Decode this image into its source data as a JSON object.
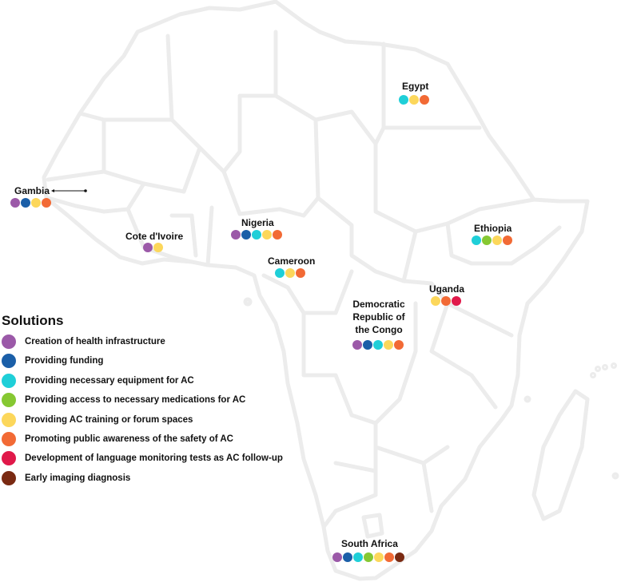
{
  "legend": {
    "title": "Solutions",
    "items": [
      {
        "label": "Creation of health infrastructure",
        "color": "#9B59A8"
      },
      {
        "label": "Providing funding",
        "color": "#1B5FA8"
      },
      {
        "label": "Providing necessary equipment for AC",
        "color": "#1FCFD8"
      },
      {
        "label": "Providing access to necessary medications for AC",
        "color": "#86C832"
      },
      {
        "label": "Providing AC training or forum spaces",
        "color": "#FCD75B"
      },
      {
        "label": "Promoting public awareness of the safety of AC",
        "color": "#F26A35"
      },
      {
        "label": "Development of language monitoring tests as AC follow-up",
        "color": "#E0194A"
      },
      {
        "label": "Early imaging diagnosis",
        "color": "#7A2A12"
      }
    ]
  },
  "countries": [
    {
      "name": "Egypt",
      "solutions": [
        2,
        4,
        5
      ]
    },
    {
      "name": "Gambia",
      "solutions": [
        0,
        1,
        4,
        5
      ]
    },
    {
      "name": "Nigeria",
      "solutions": [
        0,
        1,
        2,
        4,
        5
      ]
    },
    {
      "name": "Cote d'Ivoire",
      "solutions": [
        0,
        4
      ]
    },
    {
      "name": "Ethiopia",
      "solutions": [
        2,
        3,
        4,
        5
      ]
    },
    {
      "name": "Cameroon",
      "solutions": [
        2,
        4,
        5
      ]
    },
    {
      "name": "Uganda",
      "solutions": [
        4,
        5,
        6
      ]
    },
    {
      "name": "Democratic Republic of the Congo",
      "solutions": [
        0,
        1,
        2,
        4,
        5
      ]
    },
    {
      "name": "South Africa",
      "solutions": [
        0,
        1,
        2,
        3,
        4,
        5,
        7
      ]
    }
  ]
}
